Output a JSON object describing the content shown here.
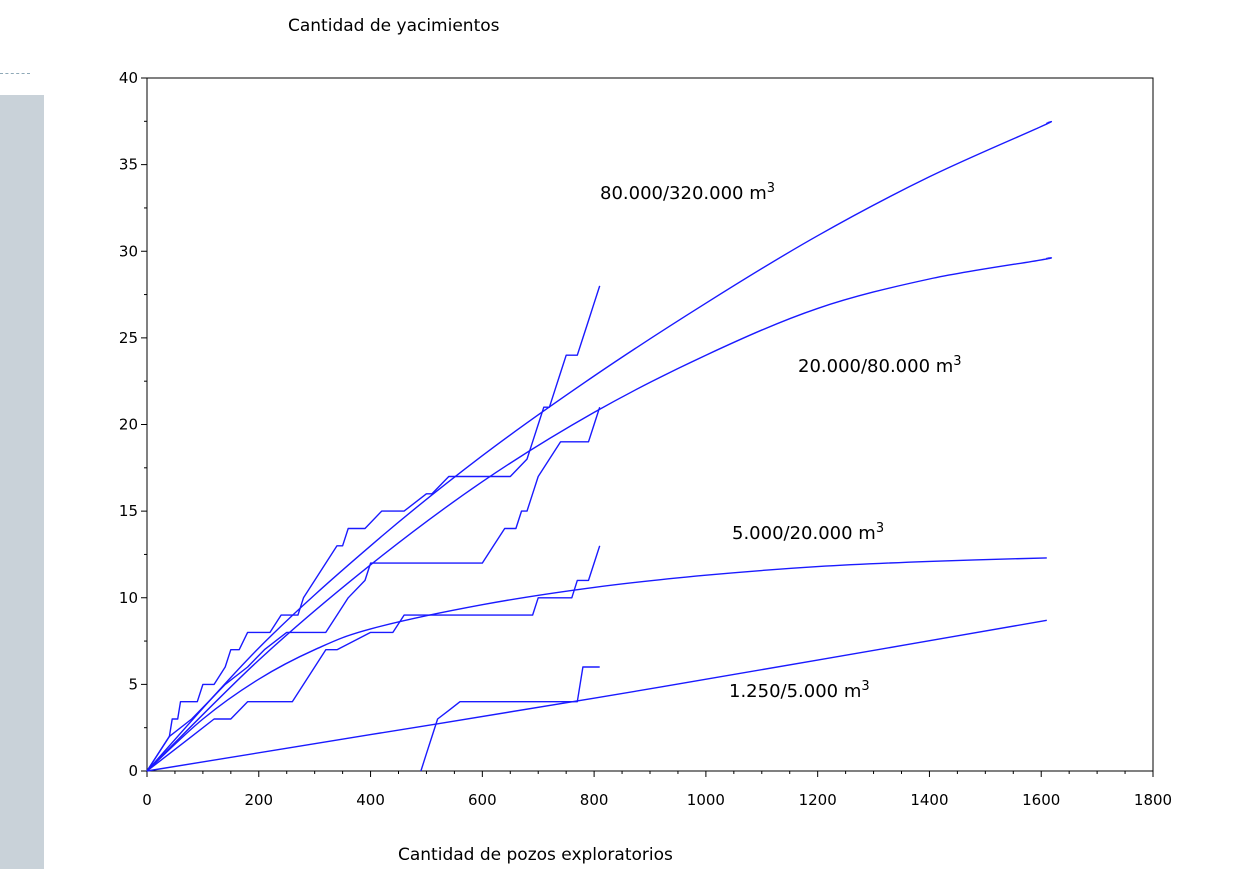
{
  "chart_data": {
    "type": "line",
    "title": "",
    "ylabel": "Cantidad de yacimientos",
    "xlabel": "Cantidad de pozos exploratorios",
    "xlim": [
      0,
      1800
    ],
    "ylim": [
      0,
      40
    ],
    "x_ticks": [
      0,
      200,
      400,
      600,
      800,
      1000,
      1200,
      1400,
      1600,
      1800
    ],
    "y_ticks": [
      0,
      5,
      10,
      15,
      20,
      25,
      30,
      35,
      40
    ],
    "x_tick_labels": [
      "0",
      "200",
      "400",
      "600",
      "800",
      "1000",
      "1200",
      "1400",
      "1600",
      "1800"
    ],
    "y_tick_labels": [
      "0",
      "5",
      "10",
      "15",
      "20",
      "25",
      "30",
      "35",
      "40"
    ],
    "line_color": "#1a1aff",
    "grid": false,
    "fitted_curves": [
      {
        "label_main": "80.000/320.000 m",
        "label_sup": "3",
        "x": [
          0,
          200,
          400,
          600,
          800,
          1000,
          1200,
          1400,
          1600,
          1610
        ],
        "y": [
          0,
          7.1,
          13.0,
          18.2,
          22.8,
          27.0,
          30.9,
          34.3,
          37.2,
          37.4
        ]
      },
      {
        "label_main": "20.000/80.000 m",
        "label_sup": "3",
        "x": [
          0,
          200,
          400,
          600,
          800,
          1000,
          1200,
          1400,
          1600,
          1610
        ],
        "y": [
          0,
          6.4,
          11.9,
          16.7,
          20.7,
          24.0,
          26.7,
          28.4,
          29.5,
          29.6
        ]
      },
      {
        "label_main": "5.000/20.000 m",
        "label_sup": "3",
        "x": [
          0,
          100,
          200,
          300,
          400,
          600,
          800,
          1000,
          1200,
          1400,
          1610
        ],
        "y": [
          0,
          3.0,
          5.3,
          7.0,
          8.2,
          9.6,
          10.6,
          11.3,
          11.8,
          12.1,
          12.3
        ]
      },
      {
        "label_main": "1.250/5.000 m",
        "label_sup": "3",
        "x": [
          0,
          400,
          800,
          1200,
          1610
        ],
        "y": [
          0,
          2.1,
          4.2,
          6.4,
          8.7
        ]
      }
    ],
    "observed_series": [
      {
        "x": [
          0,
          40,
          45,
          55,
          60,
          70,
          80,
          90,
          100,
          110,
          120,
          140,
          150,
          165,
          180,
          200,
          220,
          240,
          260,
          270,
          280,
          300,
          320,
          340,
          350,
          360,
          380,
          390,
          420,
          440,
          460,
          500,
          510,
          540,
          560,
          600,
          650,
          680,
          690,
          700,
          710,
          720,
          730,
          740,
          750,
          760,
          770,
          780,
          790,
          800,
          810
        ],
        "y": [
          0,
          2,
          3,
          3,
          4,
          4,
          4,
          4,
          5,
          5,
          5,
          6,
          7,
          7,
          8,
          8,
          8,
          9,
          9,
          9,
          10,
          11,
          12,
          13,
          13,
          14,
          14,
          14,
          15,
          15,
          15,
          16,
          16,
          17,
          17,
          17,
          17,
          18,
          19,
          20,
          21,
          21,
          22,
          23,
          24,
          24,
          24,
          25,
          26,
          27,
          28
        ]
      },
      {
        "x": [
          0,
          40,
          80,
          110,
          140,
          180,
          210,
          250,
          270,
          300,
          320,
          340,
          360,
          390,
          400,
          450,
          500,
          550,
          600,
          620,
          640,
          660,
          670,
          680,
          690,
          700,
          720,
          740,
          770,
          780,
          790,
          800,
          810
        ],
        "y": [
          0,
          2,
          3,
          4,
          5,
          6,
          7,
          8,
          8,
          8,
          8,
          9,
          10,
          11,
          12,
          12,
          12,
          12,
          12,
          13,
          14,
          14,
          15,
          15,
          16,
          17,
          18,
          19,
          19,
          19,
          19,
          20,
          21
        ]
      },
      {
        "x": [
          0,
          40,
          80,
          120,
          150,
          180,
          200,
          260,
          280,
          300,
          320,
          340,
          400,
          440,
          460,
          500,
          540,
          560,
          600,
          680,
          690,
          700,
          720,
          740,
          760,
          770,
          780,
          790,
          800,
          810
        ],
        "y": [
          0,
          1,
          2,
          3,
          3,
          4,
          4,
          4,
          5,
          6,
          7,
          7,
          8,
          8,
          9,
          9,
          9,
          9,
          9,
          9,
          9,
          10,
          10,
          10,
          10,
          11,
          11,
          11,
          12,
          13
        ]
      },
      {
        "x": [
          490,
          500,
          510,
          520,
          540,
          560,
          600,
          650,
          700,
          750,
          770,
          780,
          790,
          800,
          810
        ],
        "y": [
          0,
          1,
          2,
          3,
          3.5,
          4,
          4,
          4,
          4,
          4,
          4,
          6,
          6,
          6,
          6
        ]
      }
    ]
  }
}
